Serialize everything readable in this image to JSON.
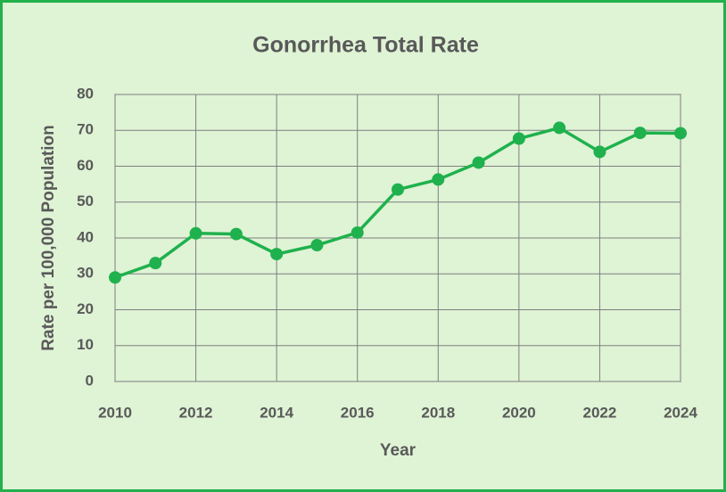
{
  "chart_data": {
    "type": "line",
    "title": "Gonorrhea Total Rate",
    "x_label": "Year",
    "y_label": "Rate per 100,000 Population",
    "x": [
      2010,
      2011,
      2012,
      2013,
      2014,
      2015,
      2016,
      2017,
      2018,
      2019,
      2020,
      2021,
      2022,
      2023,
      2024
    ],
    "values": [
      29,
      33,
      41.3,
      41.1,
      35.5,
      38,
      41.5,
      53.5,
      56.3,
      61,
      67.7,
      70.7,
      64,
      69.3,
      69.2
    ],
    "color": "#1fb14d",
    "xlim": [
      2010,
      2024
    ],
    "xticks": [
      2010,
      2012,
      2014,
      2016,
      2018,
      2020,
      2022,
      2024
    ],
    "ylim": [
      0,
      80
    ],
    "yticks": [
      0,
      10,
      20,
      30,
      40,
      50,
      60,
      70,
      80
    ],
    "grid": true
  }
}
